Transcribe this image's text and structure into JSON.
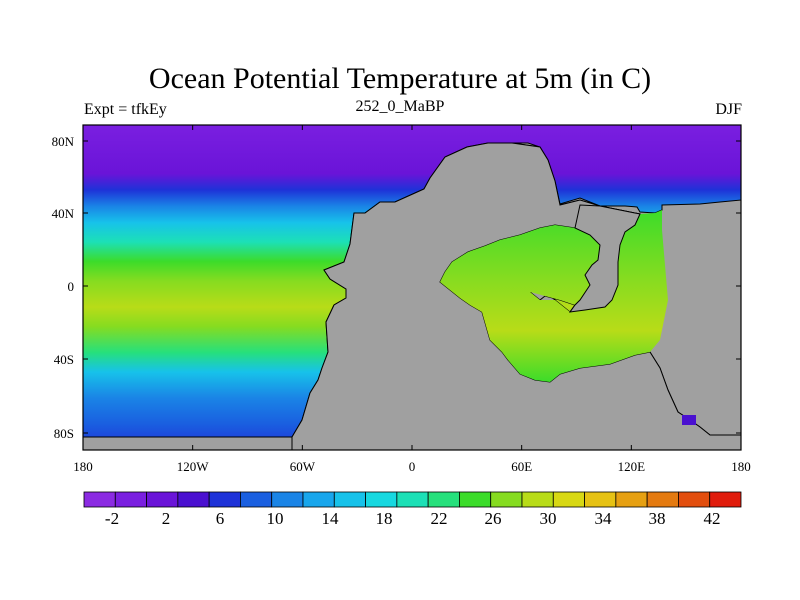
{
  "title": "Ocean Potential Temperature at 5m (in C)",
  "subtitle_left": "Expt = tfkEy",
  "subtitle_center": "252_0_MaBP",
  "subtitle_right": "DJF",
  "axes": {
    "x_ticks": [
      "180",
      "120W",
      "60W",
      "0",
      "60E",
      "120E",
      "180"
    ],
    "y_ticks": [
      "80N",
      "40N",
      "0",
      "40S",
      "80S"
    ]
  },
  "colorbar": {
    "labels": [
      "-2",
      "2",
      "6",
      "10",
      "14",
      "18",
      "22",
      "26",
      "30",
      "34",
      "38",
      "42"
    ],
    "colors": [
      "#8b2be2",
      "#7a1fe0",
      "#6a14d8",
      "#4a10d0",
      "#1e32d8",
      "#1a5fe0",
      "#1a84e6",
      "#18a6ec",
      "#17c2ea",
      "#17d8e0",
      "#1ce0b6",
      "#26e07c",
      "#3cdc2a",
      "#86dc20",
      "#b8dc18",
      "#d8d814",
      "#e6c214",
      "#e6a012",
      "#e47a10",
      "#e24e0e",
      "#e01c0c"
    ]
  },
  "colors": {
    "land": "#a0a0a0",
    "ocean_north": "#7a1fe0"
  }
}
